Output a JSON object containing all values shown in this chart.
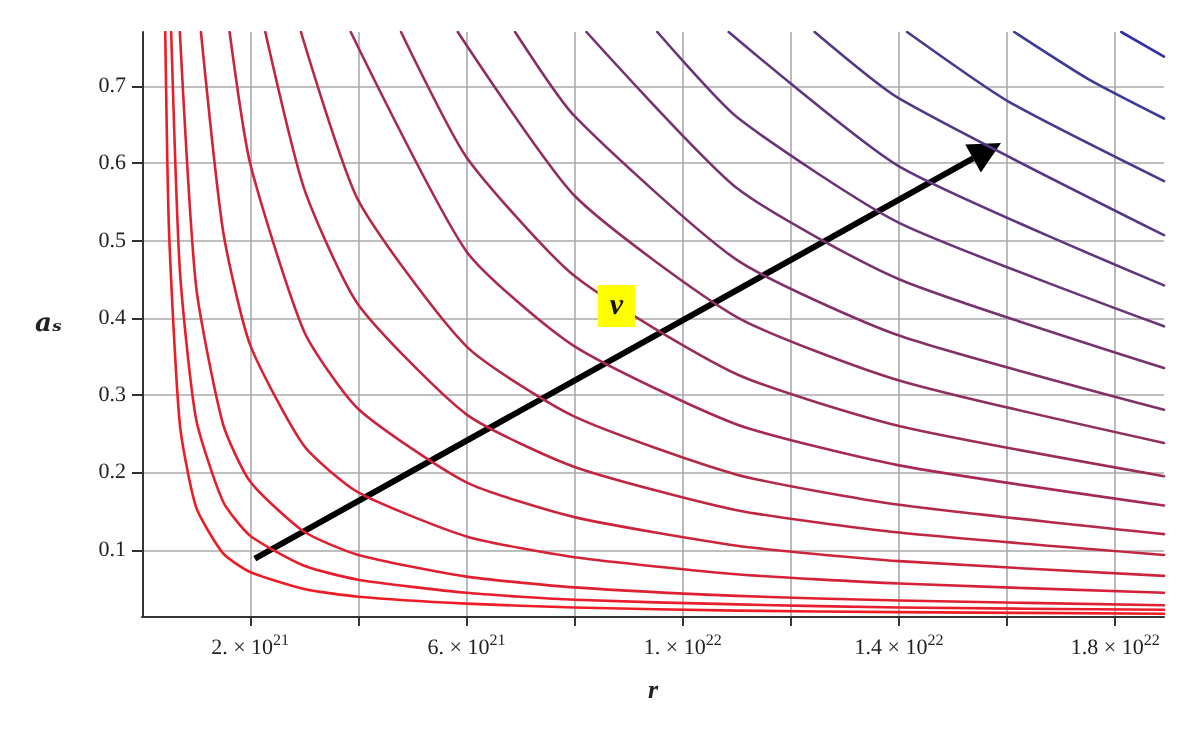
{
  "chart_data": {
    "type": "line",
    "xlabel": "r",
    "ylabel": "aₛ",
    "xlim": [
      0,
      1.89e+22
    ],
    "ylim": [
      0.014,
      0.77
    ],
    "xticks": [
      {
        "value": 2e+21,
        "label": "2. × 10$^{21}$"
      },
      {
        "value": 4e+21,
        "label": null
      },
      {
        "value": 6e+21,
        "label": "6. × 10$^{21}$"
      },
      {
        "value": 8e+21,
        "label": null
      },
      {
        "value": 1e+22,
        "label": "1. × 10$^{22}$"
      },
      {
        "value": 1.2e+22,
        "label": null
      },
      {
        "value": 1.4e+22,
        "label": "1.4 × 10$^{22}$"
      },
      {
        "value": 1.6e+22,
        "label": null
      },
      {
        "value": 1.8e+22,
        "label": "1.8 × 10$^{22}$"
      }
    ],
    "yticks": [
      0.1,
      0.2,
      0.3,
      0.4,
      0.5,
      0.6,
      0.7
    ],
    "grid": true,
    "marker": "none",
    "line_style": "solid",
    "annotations": [
      "v"
    ],
    "series": [
      {
        "color": "#ee1c25",
        "x": [
          4.3e+20,
          5e+20,
          7e+20,
          1e+21,
          1.5e+21,
          2e+21,
          3e+21,
          4e+21,
          6e+21,
          8e+21,
          1.1e+22,
          1.4e+22,
          1.89e+22
        ],
        "values": [
          0.77,
          0.512,
          0.262,
          0.155,
          0.095,
          0.071,
          0.049,
          0.039,
          0.03,
          0.025,
          0.021,
          0.019,
          0.017
        ]
      },
      {
        "color": "#e81e2c",
        "x": [
          5.4e+20,
          7e+20,
          1e+21,
          1.5e+21,
          2e+21,
          3e+21,
          4e+21,
          6e+21,
          8e+21,
          1.1e+22,
          1.4e+22,
          1.89e+22
        ],
        "values": [
          0.77,
          0.462,
          0.269,
          0.162,
          0.118,
          0.079,
          0.061,
          0.044,
          0.035,
          0.029,
          0.025,
          0.022
        ]
      },
      {
        "color": "#e02030",
        "x": [
          7e+20,
          1e+21,
          1.5e+21,
          2e+21,
          3e+21,
          4e+21,
          6e+21,
          8e+21,
          1.1e+22,
          1.4e+22,
          1.89e+22
        ],
        "values": [
          0.77,
          0.441,
          0.262,
          0.188,
          0.123,
          0.093,
          0.065,
          0.051,
          0.04,
          0.034,
          0.028
        ]
      },
      {
        "color": "#d62236",
        "x": [
          1.09e+21,
          1.5e+21,
          2e+21,
          3e+21,
          4e+21,
          6e+21,
          8e+21,
          1.1e+22,
          1.4e+22,
          1.89e+22
        ],
        "values": [
          0.77,
          0.512,
          0.365,
          0.234,
          0.174,
          0.117,
          0.09,
          0.068,
          0.056,
          0.044
        ]
      },
      {
        "color": "#cc243c",
        "x": [
          1.62e+21,
          2e+21,
          3e+21,
          4e+21,
          6e+21,
          8e+21,
          1.1e+22,
          1.4e+22,
          1.89e+22
        ],
        "values": [
          0.77,
          0.6,
          0.382,
          0.282,
          0.187,
          0.142,
          0.105,
          0.085,
          0.066
        ]
      },
      {
        "color": "#c02642",
        "x": [
          2.28e+21,
          3e+21,
          4e+21,
          6e+21,
          8e+21,
          1.1e+22,
          1.4e+22,
          1.89e+22
        ],
        "values": [
          0.77,
          0.567,
          0.417,
          0.275,
          0.207,
          0.151,
          0.122,
          0.093
        ]
      },
      {
        "color": "#b42848",
        "x": [
          2.94e+21,
          4e+21,
          6e+21,
          8e+21,
          1.1e+22,
          1.4e+22,
          1.89e+22
        ],
        "values": [
          0.77,
          0.552,
          0.363,
          0.272,
          0.197,
          0.158,
          0.12
        ]
      },
      {
        "color": "#a82a50",
        "x": [
          3.86e+21,
          6e+21,
          8e+21,
          1.1e+22,
          1.4e+22,
          1.89e+22
        ],
        "values": [
          0.77,
          0.486,
          0.363,
          0.262,
          0.209,
          0.157
        ]
      },
      {
        "color": "#9c2c58",
        "x": [
          4.79e+21,
          6e+21,
          8e+21,
          1.1e+22,
          1.4e+22,
          1.89e+22
        ],
        "values": [
          0.77,
          0.608,
          0.454,
          0.327,
          0.26,
          0.195
        ]
      },
      {
        "color": "#902e60",
        "x": [
          5.84e+21,
          8e+21,
          1.1e+22,
          1.4e+22,
          1.89e+22
        ],
        "values": [
          0.77,
          0.558,
          0.401,
          0.319,
          0.238
        ]
      },
      {
        "color": "#843068",
        "x": [
          6.9e+21,
          8e+21,
          1.1e+22,
          1.4e+22,
          1.89e+22
        ],
        "values": [
          0.77,
          0.661,
          0.475,
          0.377,
          0.281
        ]
      },
      {
        "color": "#783270",
        "x": [
          8.22e+21,
          1.1e+22,
          1.4e+22,
          1.89e+22
        ],
        "values": [
          0.77,
          0.568,
          0.45,
          0.335
        ]
      },
      {
        "color": "#6c3478",
        "x": [
          9.53e+21,
          1.1e+22,
          1.4e+22,
          1.89e+22
        ],
        "values": [
          0.77,
          0.66,
          0.523,
          0.389
        ]
      },
      {
        "color": "#603680",
        "x": [
          1.085e+22,
          1.4e+22,
          1.89e+22
        ],
        "values": [
          0.77,
          0.596,
          0.442
        ]
      },
      {
        "color": "#543888",
        "x": [
          1.244e+22,
          1.4e+22,
          1.89e+22
        ],
        "values": [
          0.77,
          0.684,
          0.507
        ]
      },
      {
        "color": "#483a90",
        "x": [
          1.415e+22,
          1.6e+22,
          1.89e+22
        ],
        "values": [
          0.77,
          0.681,
          0.577
        ]
      },
      {
        "color": "#3c3c98",
        "x": [
          1.613e+22,
          1.75e+22,
          1.89e+22
        ],
        "values": [
          0.77,
          0.709,
          0.658
        ]
      },
      {
        "color": "#3030a8",
        "x": [
          1.811e+22,
          1.89e+22
        ],
        "values": [
          0.77,
          0.738
        ]
      }
    ]
  }
}
